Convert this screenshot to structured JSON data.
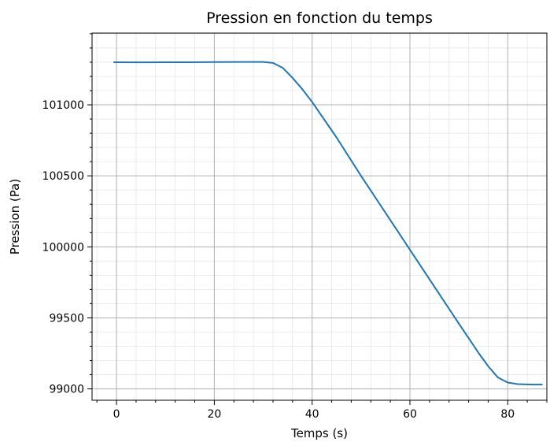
{
  "chart_data": {
    "type": "line",
    "title": "Pression en fonction du temps",
    "xlabel": "Temps (s)",
    "ylabel": "Pression (Pa)",
    "xlim": [
      -5,
      88
    ],
    "ylim": [
      98920,
      101505
    ],
    "xticks": [
      0,
      20,
      40,
      60,
      80
    ],
    "yticks": [
      99000,
      99500,
      100000,
      100500,
      101000
    ],
    "xtick_labels": [
      "0",
      "20",
      "40",
      "60",
      "80"
    ],
    "ytick_labels": [
      "99000",
      "99500",
      "100000",
      "100500",
      "101000"
    ],
    "x_minor_step": 4,
    "y_minor_step": 100,
    "grid": true,
    "grid_minor": true,
    "series": [
      {
        "color": "#1f77b4",
        "x": [
          -0.5,
          5,
          10,
          15,
          20,
          25,
          28,
          30,
          32,
          34,
          36,
          38,
          40,
          45,
          50,
          55,
          60,
          65,
          70,
          74,
          76,
          78,
          80,
          82,
          85,
          87
        ],
        "y": [
          101300,
          101299,
          101300,
          101300,
          101301,
          101302,
          101302,
          101302,
          101295,
          101260,
          101190,
          101110,
          101020,
          100770,
          100500,
          100240,
          99980,
          99720,
          99460,
          99255,
          99160,
          99080,
          99045,
          99034,
          99030,
          99030
        ]
      }
    ]
  }
}
